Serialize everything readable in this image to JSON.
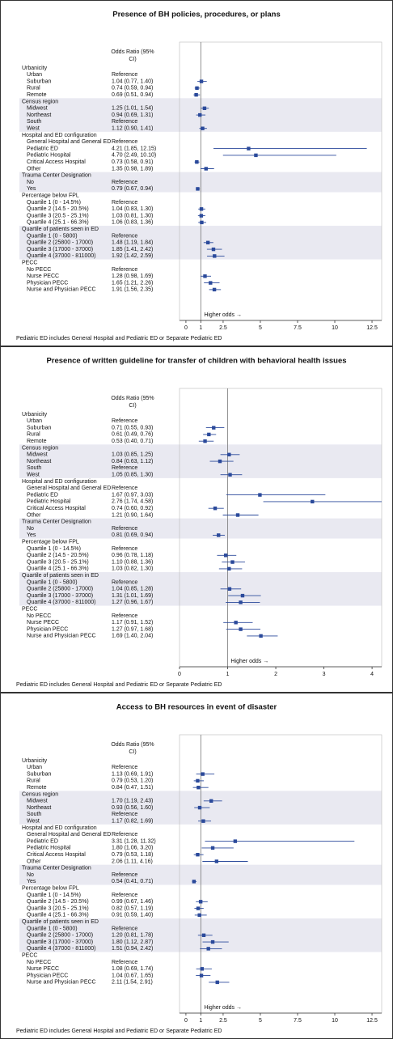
{
  "chart_data": [
    {
      "type": "forest",
      "title": "Presence of BH policies, procedures, or plans",
      "column_header": "Odds Ratio (95% CI)",
      "xlim": [
        -0.43,
        13.15
      ],
      "xticks": [
        0,
        1,
        2.5,
        5,
        7.5,
        10,
        12.5
      ],
      "reference_line": 1,
      "color": "#2b4a9b",
      "annotation": "Higher odds →",
      "footnote": "Pediatric ED includes General Hospital and Pediatric ED or Separate Pediatric ED",
      "groups": [
        {
          "name": "Urbanicity",
          "rows": [
            {
              "label": "Urban",
              "value_label": "Reference"
            },
            {
              "label": "Suburban",
              "value": 1.04,
              "lo": 0.77,
              "hi": 1.4,
              "value_label": "1.04 (0.77, 1.40)"
            },
            {
              "label": "Rural",
              "value": 0.74,
              "lo": 0.59,
              "hi": 0.94,
              "value_label": "0.74 (0.59, 0.94)"
            },
            {
              "label": "Remote",
              "value": 0.69,
              "lo": 0.51,
              "hi": 0.94,
              "value_label": "0.69 (0.51, 0.94)"
            }
          ]
        },
        {
          "name": "Census region",
          "rows": [
            {
              "label": "Midwest",
              "value": 1.25,
              "lo": 1.01,
              "hi": 1.54,
              "value_label": "1.25 (1.01, 1.54)"
            },
            {
              "label": "Northeast",
              "value": 0.94,
              "lo": 0.69,
              "hi": 1.31,
              "value_label": "0.94 (0.69, 1.31)"
            },
            {
              "label": "South",
              "value_label": "Reference"
            },
            {
              "label": "West",
              "value": 1.12,
              "lo": 0.9,
              "hi": 1.41,
              "value_label": "1.12 (0.90, 1.41)"
            }
          ]
        },
        {
          "name": "Hospital and ED configuration",
          "rows": [
            {
              "label": "General Hospital and General ED",
              "value_label": "Reference"
            },
            {
              "label": "Pediatric ED",
              "value": 4.21,
              "lo": 1.85,
              "hi": 12.15,
              "value_label": "4.21 (1.85, 12.15)"
            },
            {
              "label": "Pediatric Hospital",
              "value": 4.7,
              "lo": 2.49,
              "hi": 10.1,
              "value_label": "4.70 (2.49, 10.10)"
            },
            {
              "label": "Critical Access Hospital",
              "value": 0.73,
              "lo": 0.58,
              "hi": 0.91,
              "value_label": "0.73 (0.58, 0.91)"
            },
            {
              "label": "Other",
              "value": 1.35,
              "lo": 0.98,
              "hi": 1.89,
              "value_label": "1.35 (0.98, 1.89)"
            }
          ]
        },
        {
          "name": "Trauma Center Designation",
          "rows": [
            {
              "label": "No",
              "value_label": "Reference"
            },
            {
              "label": "Yes",
              "value": 0.79,
              "lo": 0.67,
              "hi": 0.94,
              "value_label": "0.79 (0.67, 0.94)"
            }
          ]
        },
        {
          "name": "Percentage below FPL",
          "rows": [
            {
              "label": "Quartile 1 (0 - 14.5%)",
              "value_label": "Reference"
            },
            {
              "label": "Quartile 2 (14.5 - 20.5%)",
              "value": 1.04,
              "lo": 0.83,
              "hi": 1.3,
              "value_label": "1.04 (0.83, 1.30)"
            },
            {
              "label": "Quartile 3 (20.5 - 25.1%)",
              "value": 1.03,
              "lo": 0.81,
              "hi": 1.3,
              "value_label": "1.03 (0.81, 1.30)"
            },
            {
              "label": "Quartile 4 (25.1 - 66.3%)",
              "value": 1.06,
              "lo": 0.83,
              "hi": 1.36,
              "value_label": "1.06 (0.83, 1.36)"
            }
          ]
        },
        {
          "name": "Quartile of patients seen in ED",
          "rows": [
            {
              "label": "Quartile 1 (0 - 5800)",
              "value_label": "Reference"
            },
            {
              "label": "Quartile 2 (25800 - 17000)",
              "value": 1.48,
              "lo": 1.19,
              "hi": 1.84,
              "value_label": "1.48 (1.19, 1.84)"
            },
            {
              "label": "Quartile 3 (17000 - 37000)",
              "value": 1.85,
              "lo": 1.41,
              "hi": 2.42,
              "value_label": "1.85 (1.41, 2.42)"
            },
            {
              "label": "Quartile 4 (37000 - 811000)",
              "value": 1.92,
              "lo": 1.42,
              "hi": 2.59,
              "value_label": "1.92 (1.42, 2.59)"
            }
          ]
        },
        {
          "name": "PECC",
          "rows": [
            {
              "label": "No PECC",
              "value_label": "Reference"
            },
            {
              "label": "Nurse PECC",
              "value": 1.28,
              "lo": 0.98,
              "hi": 1.69,
              "value_label": "1.28 (0.98, 1.69)"
            },
            {
              "label": "Physician PECC",
              "value": 1.65,
              "lo": 1.21,
              "hi": 2.26,
              "value_label": "1.65 (1.21, 2.26)"
            },
            {
              "label": "Nurse and Physician PECC",
              "value": 1.91,
              "lo": 1.56,
              "hi": 2.35,
              "value_label": "1.91 (1.56, 2.35)"
            }
          ]
        }
      ]
    },
    {
      "type": "forest",
      "title": "Presence of written guideline for transfer of children with behavioral health issues",
      "column_header": "Odds Ratio (95% CI)",
      "xlim": [
        0,
        4.2
      ],
      "xticks": [
        0,
        1,
        2,
        3,
        4
      ],
      "reference_line": 1,
      "color": "#2b4a9b",
      "annotation": "Higher odds →",
      "footnote": "Pediatric ED includes General Hospital and Pediatric ED or Separate Pediatric ED",
      "groups": [
        {
          "name": "Urbanicity",
          "rows": [
            {
              "label": "Urban",
              "value_label": "Reference"
            },
            {
              "label": "Suburban",
              "value": 0.71,
              "lo": 0.55,
              "hi": 0.93,
              "value_label": "0.71 (0.55, 0.93)"
            },
            {
              "label": "Rural",
              "value": 0.61,
              "lo": 0.49,
              "hi": 0.76,
              "value_label": "0.61 (0.49, 0.76)"
            },
            {
              "label": "Remote",
              "value": 0.53,
              "lo": 0.4,
              "hi": 0.71,
              "value_label": "0.53 (0.40, 0.71)"
            }
          ]
        },
        {
          "name": "Census region",
          "rows": [
            {
              "label": "Midwest",
              "value": 1.03,
              "lo": 0.85,
              "hi": 1.25,
              "value_label": "1.03 (0.85, 1.25)"
            },
            {
              "label": "Northeast",
              "value": 0.84,
              "lo": 0.63,
              "hi": 1.12,
              "value_label": "0.84 (0.63, 1.12)"
            },
            {
              "label": "South",
              "value_label": "Reference"
            },
            {
              "label": "West",
              "value": 1.05,
              "lo": 0.85,
              "hi": 1.3,
              "value_label": "1.05 (0.85, 1.30)"
            }
          ]
        },
        {
          "name": "Hospital and ED configuration",
          "rows": [
            {
              "label": "General Hospital and General ED",
              "value_label": "Reference"
            },
            {
              "label": "Pediatric ED",
              "value": 1.67,
              "lo": 0.97,
              "hi": 3.03,
              "value_label": "1.67 (0.97, 3.03)"
            },
            {
              "label": "Pediatric Hospital",
              "value": 2.76,
              "lo": 1.74,
              "hi": 4.58,
              "value_label": "2.76 (1.74, 4.58)"
            },
            {
              "label": "Critical Access Hospital",
              "value": 0.74,
              "lo": 0.6,
              "hi": 0.92,
              "value_label": "0.74 (0.60, 0.92)"
            },
            {
              "label": "Other",
              "value": 1.21,
              "lo": 0.9,
              "hi": 1.64,
              "value_label": "1.21 (0.90, 1.64)"
            }
          ]
        },
        {
          "name": "Trauma Center Designation",
          "rows": [
            {
              "label": "No",
              "value_label": "Reference"
            },
            {
              "label": "Yes",
              "value": 0.81,
              "lo": 0.69,
              "hi": 0.94,
              "value_label": "0.81 (0.69, 0.94)"
            }
          ]
        },
        {
          "name": "Percentage below FPL",
          "rows": [
            {
              "label": "Quartile 1 (0 - 14.5%)",
              "value_label": "Reference"
            },
            {
              "label": "Quartile 2 (14.5 - 20.5%)",
              "value": 0.96,
              "lo": 0.78,
              "hi": 1.18,
              "value_label": "0.96 (0.78, 1.18)"
            },
            {
              "label": "Quartile 3 (20.5 - 25.1%)",
              "value": 1.1,
              "lo": 0.88,
              "hi": 1.36,
              "value_label": "1.10 (0.88, 1.36)"
            },
            {
              "label": "Quartile 4 (25.1 - 66.3%)",
              "value": 1.03,
              "lo": 0.82,
              "hi": 1.3,
              "value_label": "1.03 (0.82, 1.30)"
            }
          ]
        },
        {
          "name": "Quartile of patients seen in ED",
          "rows": [
            {
              "label": "Quartile 1 (0 - 5800)",
              "value_label": "Reference"
            },
            {
              "label": "Quartile 2 (25800 - 17000)",
              "value": 1.04,
              "lo": 0.85,
              "hi": 1.28,
              "value_label": "1.04 (0.85, 1.28)"
            },
            {
              "label": "Quartile 3 (17000 - 37000)",
              "value": 1.31,
              "lo": 1.01,
              "hi": 1.69,
              "value_label": "1.31 (1.01, 1.69)"
            },
            {
              "label": "Quartile 4 (37000 - 811000)",
              "value": 1.27,
              "lo": 0.96,
              "hi": 1.67,
              "value_label": "1.27 (0.96, 1.67)"
            }
          ]
        },
        {
          "name": "PECC",
          "rows": [
            {
              "label": "No PECC",
              "value_label": "Reference"
            },
            {
              "label": "Nurse PECC",
              "value": 1.17,
              "lo": 0.91,
              "hi": 1.52,
              "value_label": "1.17 (0.91, 1.52)"
            },
            {
              "label": "Physician PECC",
              "value": 1.27,
              "lo": 0.97,
              "hi": 1.68,
              "value_label": "1.27 (0.97, 1.68)"
            },
            {
              "label": "Nurse and Physician PECC",
              "value": 1.69,
              "lo": 1.4,
              "hi": 2.04,
              "value_label": "1.69 (1.40, 2.04)"
            }
          ]
        }
      ]
    },
    {
      "type": "forest",
      "title": "Access to BH resources in event of disaster",
      "column_header": "Odds Ratio (95% CI)",
      "xlim": [
        -0.43,
        13.15
      ],
      "xticks": [
        0,
        1,
        2.5,
        5,
        7.5,
        10,
        12.5
      ],
      "reference_line": 1,
      "color": "#2b4a9b",
      "annotation": "Higher odds →",
      "footnote": "Pediatric ED includes General Hospital and Pediatric ED or Separate Pediatric ED",
      "groups": [
        {
          "name": "Urbanicity",
          "rows": [
            {
              "label": "Urban",
              "value_label": "Reference"
            },
            {
              "label": "Suburban",
              "value": 1.13,
              "lo": 0.69,
              "hi": 1.91,
              "value_label": "1.13 (0.69, 1.91)"
            },
            {
              "label": "Rural",
              "value": 0.79,
              "lo": 0.53,
              "hi": 1.2,
              "value_label": "0.79 (0.53, 1.20)"
            },
            {
              "label": "Remote",
              "value": 0.84,
              "lo": 0.47,
              "hi": 1.51,
              "value_label": "0.84 (0.47, 1.51)"
            }
          ]
        },
        {
          "name": "Census region",
          "rows": [
            {
              "label": "Midwest",
              "value": 1.7,
              "lo": 1.19,
              "hi": 2.43,
              "value_label": "1.70 (1.19, 2.43)"
            },
            {
              "label": "Northeast",
              "value": 0.93,
              "lo": 0.56,
              "hi": 1.6,
              "value_label": "0.93 (0.56, 1.60)"
            },
            {
              "label": "South",
              "value_label": "Reference"
            },
            {
              "label": "West",
              "value": 1.17,
              "lo": 0.82,
              "hi": 1.69,
              "value_label": "1.17 (0.82, 1.69)"
            }
          ]
        },
        {
          "name": "Hospital and ED configuration",
          "rows": [
            {
              "label": "General Hospital and General ED",
              "value_label": "Reference"
            },
            {
              "label": "Pediatric ED",
              "value": 3.31,
              "lo": 1.28,
              "hi": 11.32,
              "value_label": "3.31 (1.28, 11.32)"
            },
            {
              "label": "Pediatric Hospital",
              "value": 1.8,
              "lo": 1.06,
              "hi": 3.2,
              "value_label": "1.80 (1.06, 3.20)"
            },
            {
              "label": "Critical Access Hospital",
              "value": 0.79,
              "lo": 0.53,
              "hi": 1.18,
              "value_label": "0.79 (0.53, 1.18)"
            },
            {
              "label": "Other",
              "value": 2.06,
              "lo": 1.11,
              "hi": 4.16,
              "value_label": "2.06 (1.11, 4.16)"
            }
          ]
        },
        {
          "name": "Trauma Center Designation",
          "rows": [
            {
              "label": "No",
              "value_label": "Reference"
            },
            {
              "label": "Yes",
              "value": 0.54,
              "lo": 0.41,
              "hi": 0.71,
              "value_label": "0.54 (0.41, 0.71)"
            }
          ]
        },
        {
          "name": "Percentage below FPL",
          "rows": [
            {
              "label": "Quartile 1 (0 - 14.5%)",
              "value_label": "Reference"
            },
            {
              "label": "Quartile 2 (14.5 - 20.5%)",
              "value": 0.99,
              "lo": 0.67,
              "hi": 1.46,
              "value_label": "0.99 (0.67, 1.46)"
            },
            {
              "label": "Quartile 3 (20.5 - 25.1%)",
              "value": 0.82,
              "lo": 0.57,
              "hi": 1.19,
              "value_label": "0.82 (0.57, 1.19)"
            },
            {
              "label": "Quartile 4 (25.1 - 66.3%)",
              "value": 0.91,
              "lo": 0.59,
              "hi": 1.4,
              "value_label": "0.91 (0.59, 1.40)"
            }
          ]
        },
        {
          "name": "Quartile of patients seen in ED",
          "rows": [
            {
              "label": "Quartile 1 (0 - 5800)",
              "value_label": "Reference"
            },
            {
              "label": "Quartile 2 (25800 - 17000)",
              "value": 1.2,
              "lo": 0.81,
              "hi": 1.78,
              "value_label": "1.20 (0.81, 1.78)"
            },
            {
              "label": "Quartile 3 (17000 - 37000)",
              "value": 1.8,
              "lo": 1.12,
              "hi": 2.87,
              "value_label": "1.80 (1.12, 2.87)"
            },
            {
              "label": "Quartile 4 (37000 - 811000)",
              "value": 1.51,
              "lo": 0.94,
              "hi": 2.42,
              "value_label": "1.51 (0.94, 2.42)"
            }
          ]
        },
        {
          "name": "PECC",
          "rows": [
            {
              "label": "No PECC",
              "value_label": "Reference"
            },
            {
              "label": "Nurse PECC",
              "value": 1.08,
              "lo": 0.69,
              "hi": 1.74,
              "value_label": "1.08 (0.69, 1.74)"
            },
            {
              "label": "Physician PECC",
              "value": 1.04,
              "lo": 0.67,
              "hi": 1.65,
              "value_label": "1.04 (0.67, 1.65)"
            },
            {
              "label": "Nurse and Physician PECC",
              "value": 2.11,
              "lo": 1.54,
              "hi": 2.91,
              "value_label": "2.11 (1.54, 2.91)"
            }
          ]
        }
      ]
    }
  ]
}
